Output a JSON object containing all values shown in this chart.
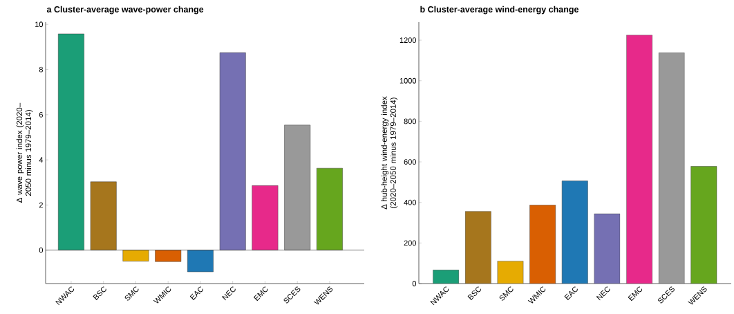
{
  "chart_data": [
    {
      "type": "bar",
      "title": "a   Cluster-average wave-power change",
      "ylabel": "Δ wave power index (2020–2050 minus 1979–2014)",
      "categories": [
        "NWAC",
        "BSC",
        "SMC",
        "WMIC",
        "EAC",
        "NEC",
        "EMC",
        "SCES",
        "WENS"
      ],
      "values": [
        9.58,
        3.03,
        -0.49,
        -0.51,
        -0.96,
        8.75,
        2.86,
        5.54,
        3.63
      ],
      "colors": [
        "#1b9e77",
        "#a6761d",
        "#e6ab02",
        "#d95f02",
        "#1f78b4",
        "#7570b3",
        "#e7298a",
        "#999999",
        "#66a61e"
      ],
      "ylim": [
        -1.48,
        10.1
      ],
      "yticks": [
        0,
        2,
        4,
        6,
        8,
        10
      ],
      "grid": false,
      "ref_lines": [
        {
          "axis": "y",
          "value": 0
        }
      ]
    },
    {
      "type": "bar",
      "title": "b   Cluster-average wind-energy change",
      "ylabel": "Δ hub-height wind-energy index (2020–2050 minus 1979–2014)",
      "categories": [
        "NWAC",
        "BSC",
        "SMC",
        "WMIC",
        "EAC",
        "NEC",
        "EMC",
        "SCES",
        "WENS"
      ],
      "values": [
        67,
        356,
        111,
        387,
        506,
        344,
        1225,
        1138,
        578
      ],
      "colors": [
        "#1b9e77",
        "#a6761d",
        "#e6ab02",
        "#d95f02",
        "#1f78b4",
        "#7570b3",
        "#e7298a",
        "#999999",
        "#66a61e"
      ],
      "ylim": [
        0,
        1289
      ],
      "yticks": [
        0,
        200,
        400,
        600,
        800,
        1000,
        1200
      ],
      "grid": false
    }
  ]
}
